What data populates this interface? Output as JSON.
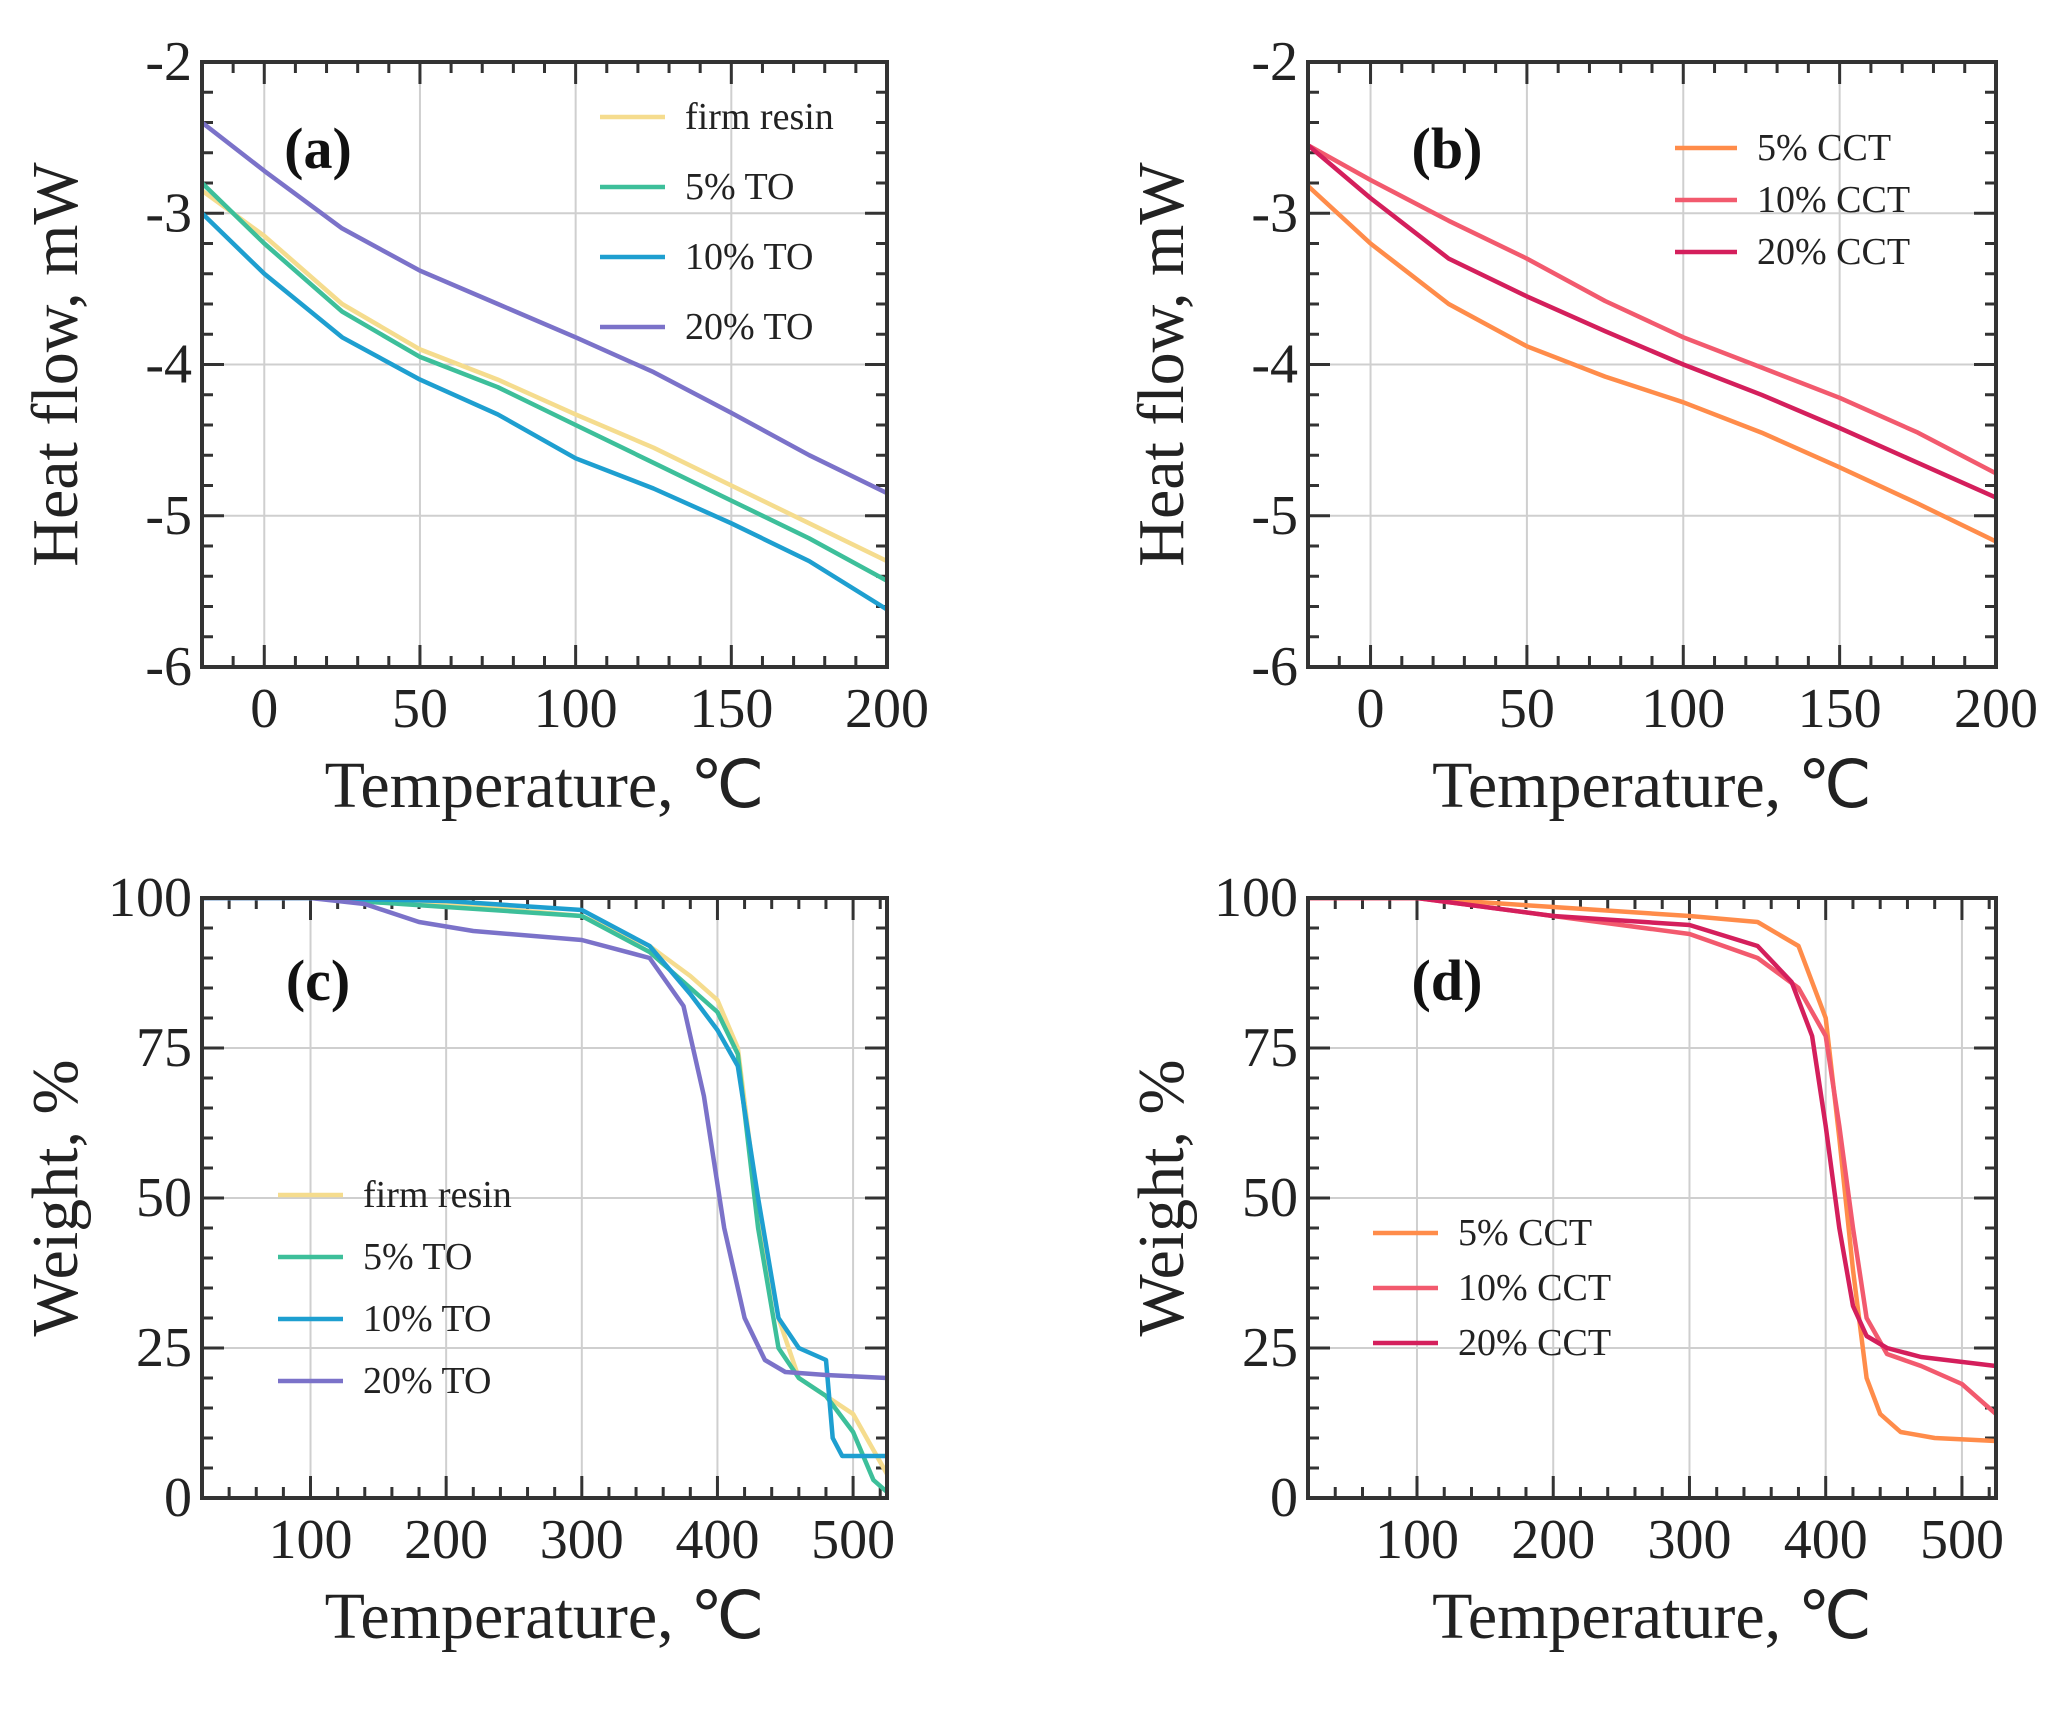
{
  "chart_data": [
    {
      "type": "line",
      "panel": "(a)",
      "xlabel": "Temperature, ℃",
      "ylabel": "Heat flow, mW",
      "xlim": [
        -20,
        200
      ],
      "ylim": [
        -6,
        -2
      ],
      "xticks": [
        0,
        50,
        100,
        150,
        200
      ],
      "xtick_labels": [
        "0",
        "50",
        "100",
        "150",
        "200"
      ],
      "yticks": [
        -6,
        -5,
        -4,
        -3,
        -2
      ],
      "ytick_labels": [
        "-6",
        "-5",
        "-4",
        "-3",
        "-2"
      ],
      "xminor": 10,
      "yminor": 0.2,
      "grid": true,
      "legend_position": "top-right",
      "series": [
        {
          "name": "firm resin",
          "color": "#f5dc8e",
          "x": [
            -20,
            0,
            25,
            50,
            75,
            100,
            125,
            150,
            175,
            200
          ],
          "y": [
            -2.85,
            -3.15,
            -3.6,
            -3.9,
            -4.1,
            -4.33,
            -4.55,
            -4.8,
            -5.05,
            -5.3
          ]
        },
        {
          "name": "5% TO",
          "color": "#3dbf9a",
          "x": [
            -20,
            0,
            25,
            50,
            75,
            100,
            125,
            150,
            175,
            200
          ],
          "y": [
            -2.8,
            -3.2,
            -3.65,
            -3.95,
            -4.15,
            -4.4,
            -4.65,
            -4.9,
            -5.15,
            -5.43
          ]
        },
        {
          "name": "10% TO",
          "color": "#1e9fd0",
          "x": [
            -20,
            0,
            25,
            50,
            75,
            100,
            125,
            150,
            175,
            200
          ],
          "y": [
            -3.0,
            -3.4,
            -3.82,
            -4.1,
            -4.33,
            -4.62,
            -4.82,
            -5.05,
            -5.3,
            -5.62
          ]
        },
        {
          "name": "20% TO",
          "color": "#7b72c9",
          "x": [
            -20,
            0,
            25,
            50,
            75,
            100,
            125,
            150,
            175,
            200
          ],
          "y": [
            -2.4,
            -2.72,
            -3.1,
            -3.38,
            -3.6,
            -3.82,
            -4.05,
            -4.32,
            -4.6,
            -4.85
          ]
        }
      ]
    },
    {
      "type": "line",
      "panel": "(b)",
      "xlabel": "Temperature, ℃",
      "ylabel": "Heat flow, mW",
      "xlim": [
        -20,
        200
      ],
      "ylim": [
        -6,
        -2
      ],
      "xticks": [
        0,
        50,
        100,
        150,
        200
      ],
      "xtick_labels": [
        "0",
        "50",
        "100",
        "150",
        "200"
      ],
      "yticks": [
        -6,
        -5,
        -4,
        -3,
        -2
      ],
      "ytick_labels": [
        "-6",
        "-5",
        "-4",
        "-3",
        "-2"
      ],
      "xminor": 10,
      "yminor": 0.2,
      "grid": true,
      "legend_position": "top-right",
      "series": [
        {
          "name": "5% CCT",
          "color": "#ff8c4a",
          "x": [
            -20,
            0,
            25,
            50,
            75,
            100,
            125,
            150,
            175,
            200
          ],
          "y": [
            -2.82,
            -3.2,
            -3.6,
            -3.88,
            -4.08,
            -4.25,
            -4.45,
            -4.68,
            -4.92,
            -5.17
          ]
        },
        {
          "name": "10% CCT",
          "color": "#f25a6e",
          "x": [
            -20,
            0,
            25,
            50,
            75,
            100,
            125,
            150,
            175,
            200
          ],
          "y": [
            -2.55,
            -2.78,
            -3.05,
            -3.3,
            -3.58,
            -3.82,
            -4.02,
            -4.22,
            -4.45,
            -4.72
          ]
        },
        {
          "name": "20% CCT",
          "color": "#d41f5c",
          "x": [
            -20,
            0,
            25,
            50,
            75,
            100,
            125,
            150,
            175,
            200
          ],
          "y": [
            -2.55,
            -2.9,
            -3.3,
            -3.55,
            -3.78,
            -4.0,
            -4.2,
            -4.42,
            -4.65,
            -4.88
          ]
        }
      ]
    },
    {
      "type": "line",
      "panel": "(c)",
      "xlabel": "Temperature, ℃",
      "ylabel": "Weight, %",
      "xlim": [
        20,
        525
      ],
      "ylim": [
        0,
        100
      ],
      "xticks": [
        100,
        200,
        300,
        400,
        500
      ],
      "xtick_labels": [
        "100",
        "200",
        "300",
        "400",
        "500"
      ],
      "yticks": [
        0,
        25,
        50,
        75,
        100
      ],
      "ytick_labels": [
        "0",
        "25",
        "50",
        "75",
        "100"
      ],
      "xminor": 20,
      "yminor": 5,
      "grid": true,
      "legend_position": "center-left",
      "series": [
        {
          "name": "firm resin",
          "color": "#f5dc8e",
          "x": [
            20,
            100,
            200,
            300,
            350,
            380,
            400,
            415,
            430,
            445,
            460,
            480,
            500,
            515,
            525
          ],
          "y": [
            100,
            100,
            99,
            97,
            92,
            87,
            83,
            75,
            48,
            30,
            20,
            17,
            14,
            8,
            4
          ]
        },
        {
          "name": "5% TO",
          "color": "#3dbf9a",
          "x": [
            20,
            100,
            200,
            300,
            350,
            380,
            400,
            415,
            430,
            445,
            460,
            480,
            500,
            515,
            525
          ],
          "y": [
            100,
            100,
            98.5,
            97,
            91,
            85,
            81,
            74,
            45,
            25,
            20,
            17,
            11,
            3,
            1
          ]
        },
        {
          "name": "10% TO",
          "color": "#1e9fd0",
          "x": [
            20,
            100,
            200,
            300,
            350,
            380,
            400,
            415,
            430,
            445,
            460,
            480,
            485,
            492,
            525
          ],
          "y": [
            100,
            100,
            99.5,
            98,
            92,
            84,
            78,
            72,
            50,
            30,
            25,
            23,
            10,
            7,
            7
          ]
        },
        {
          "name": "20% TO",
          "color": "#7b72c9",
          "x": [
            20,
            100,
            140,
            180,
            220,
            300,
            350,
            375,
            390,
            405,
            420,
            435,
            450,
            480,
            525
          ],
          "y": [
            100,
            100,
            99,
            96,
            94.5,
            93,
            90,
            82,
            67,
            45,
            30,
            23,
            21,
            20.5,
            20
          ]
        }
      ]
    },
    {
      "type": "line",
      "panel": "(d)",
      "xlabel": "Temperature, ℃",
      "ylabel": "Weight, %",
      "xlim": [
        20,
        525
      ],
      "ylim": [
        0,
        100
      ],
      "xticks": [
        100,
        200,
        300,
        400,
        500
      ],
      "xtick_labels": [
        "100",
        "200",
        "300",
        "400",
        "500"
      ],
      "yticks": [
        0,
        25,
        50,
        75,
        100
      ],
      "ytick_labels": [
        "0",
        "25",
        "50",
        "75",
        "100"
      ],
      "xminor": 20,
      "yminor": 5,
      "grid": true,
      "legend_position": "center-left",
      "series": [
        {
          "name": "5% CCT",
          "color": "#ff8c4a",
          "x": [
            20,
            100,
            200,
            300,
            350,
            380,
            400,
            410,
            420,
            430,
            440,
            455,
            480,
            525
          ],
          "y": [
            100,
            100,
            98.5,
            97,
            96,
            92,
            80,
            60,
            38,
            20,
            14,
            11,
            10,
            9.5
          ]
        },
        {
          "name": "10% CCT",
          "color": "#f25a6e",
          "x": [
            20,
            100,
            200,
            300,
            350,
            380,
            400,
            410,
            420,
            430,
            445,
            470,
            500,
            525
          ],
          "y": [
            100,
            100,
            97,
            94,
            90,
            85,
            77,
            62,
            45,
            30,
            24,
            22,
            19,
            14
          ]
        },
        {
          "name": "20% CCT",
          "color": "#d41f5c",
          "x": [
            20,
            100,
            200,
            300,
            350,
            375,
            390,
            400,
            410,
            420,
            430,
            445,
            470,
            525
          ],
          "y": [
            100,
            100,
            97,
            95.5,
            92,
            86,
            77,
            62,
            45,
            32,
            27,
            25,
            23.5,
            22
          ]
        }
      ]
    }
  ]
}
